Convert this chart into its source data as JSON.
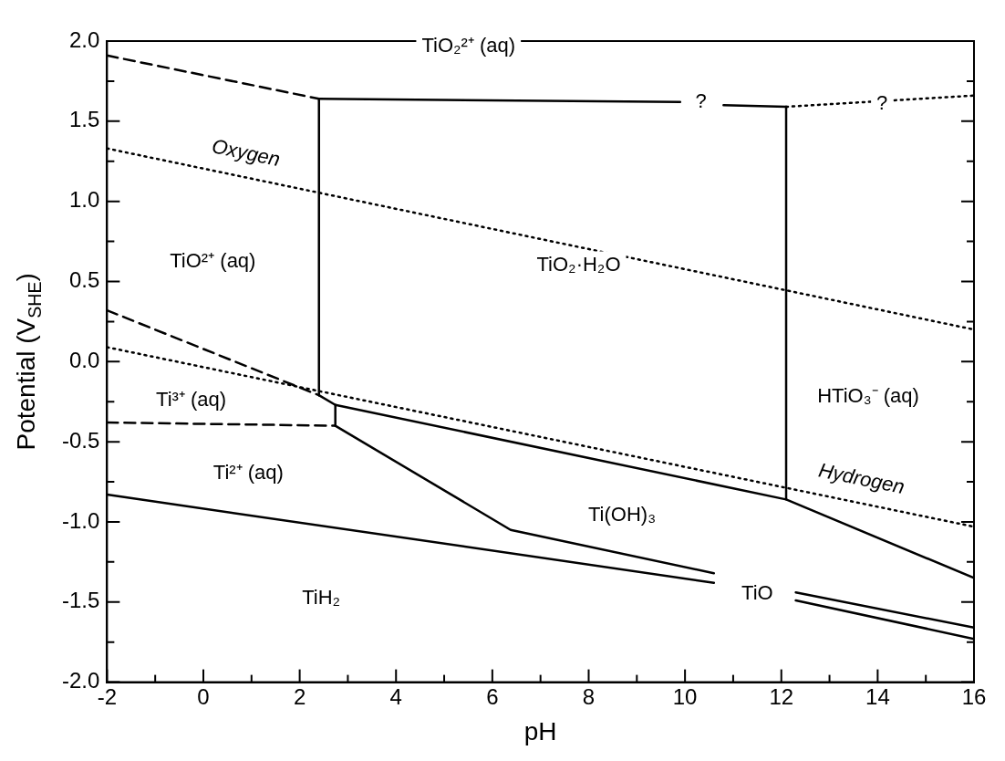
{
  "chart_data": {
    "type": "line",
    "xlabel": "pH",
    "ylabel": "Potential (V$_{SHE}$)",
    "xlim": [
      -2,
      16
    ],
    "ylim": [
      -2,
      2
    ],
    "xticks": [
      -2,
      {
        "value": -1,
        "label": null
      },
      0,
      {
        "value": 1,
        "label": null
      },
      2,
      {
        "value": 3,
        "label": null
      },
      4,
      {
        "value": 5,
        "label": null
      },
      6,
      {
        "value": 7,
        "label": null
      },
      8,
      {
        "value": 9,
        "label": null
      },
      10,
      {
        "value": 11,
        "label": null
      },
      12,
      {
        "value": 13,
        "label": null
      },
      14,
      {
        "value": 15,
        "label": null
      },
      16
    ],
    "yticks": [
      {
        "value": -2,
        "label": "-2.0"
      },
      {
        "value": -1.75,
        "label": null
      },
      {
        "value": -1.5,
        "label": "-1.5"
      },
      {
        "value": -1.25,
        "label": null
      },
      {
        "value": -1,
        "label": "-1.0"
      },
      {
        "value": -0.75,
        "label": null
      },
      {
        "value": -0.5,
        "label": "-0.5"
      },
      {
        "value": -0.25,
        "label": null
      },
      {
        "value": 0,
        "label": "0.0"
      },
      {
        "value": 0.25,
        "label": null
      },
      {
        "value": 0.5,
        "label": "0.5"
      },
      {
        "value": 0.75,
        "label": null
      },
      {
        "value": 1,
        "label": "1.0"
      },
      {
        "value": 1.25,
        "label": null
      },
      {
        "value": 1.5,
        "label": "1.5"
      },
      {
        "value": 1.75,
        "label": null
      },
      {
        "value": 2,
        "label": "2.0"
      }
    ],
    "grid": false,
    "legend": false,
    "marker": "none",
    "series": [
      {
        "color": "#000000",
        "line_style": "dashed",
        "x": [
          -2,
          2.4
        ],
        "values": [
          1.91,
          1.64
        ]
      },
      {
        "color": "#000000",
        "line_style": "solid",
        "x": [
          2.4,
          9.9
        ],
        "values": [
          1.64,
          1.62
        ]
      },
      {
        "color": "#000000",
        "line_style": "solid",
        "x": [
          10.8,
          12.1
        ],
        "values": [
          1.6,
          1.59
        ]
      },
      {
        "color": "#000000",
        "line_style": "dotted",
        "x": [
          12.1,
          16
        ],
        "values": [
          1.59,
          1.66
        ]
      },
      {
        "color": "#000000",
        "line_style": "solid",
        "x": [
          2.4,
          2.4
        ],
        "values": [
          1.64,
          -0.21
        ]
      },
      {
        "color": "#000000",
        "line_style": "solid",
        "x": [
          12.1,
          12.1
        ],
        "values": [
          1.59,
          -0.86
        ]
      },
      {
        "name": "Oxygen",
        "color": "#000000",
        "line_style": "dotted",
        "x": [
          -2,
          16
        ],
        "values": [
          1.33,
          0.2
        ]
      },
      {
        "name": "Hydrogen",
        "color": "#000000",
        "line_style": "dotted",
        "x": [
          -2,
          16
        ],
        "values": [
          0.09,
          -1.03
        ]
      },
      {
        "color": "#000000",
        "line_style": "dashed",
        "x": [
          -2,
          2.4
        ],
        "values": [
          0.32,
          -0.21
        ]
      },
      {
        "color": "#000000",
        "line_style": "solid",
        "x": [
          2.4,
          2.74,
          12.1,
          16
        ],
        "values": [
          -0.21,
          -0.27,
          -0.86,
          -1.35
        ]
      },
      {
        "color": "#000000",
        "line_style": "solid",
        "x": [
          2.74,
          2.74
        ],
        "values": [
          -0.27,
          -0.4
        ]
      },
      {
        "color": "#000000",
        "line_style": "dashed",
        "x": [
          -2,
          2.74
        ],
        "values": [
          -0.38,
          -0.4
        ]
      },
      {
        "color": "#000000",
        "line_style": "solid",
        "x": [
          2.74,
          6.38,
          10.6
        ],
        "values": [
          -0.4,
          -1.05,
          -1.32
        ]
      },
      {
        "color": "#000000",
        "line_style": "solid",
        "x": [
          -2,
          10.6
        ],
        "values": [
          -0.83,
          -1.38
        ]
      },
      {
        "color": "#000000",
        "line_style": "solid",
        "x": [
          12.3,
          16
        ],
        "values": [
          -1.44,
          -1.66
        ]
      },
      {
        "color": "#000000",
        "line_style": "solid",
        "x": [
          12.3,
          16
        ],
        "values": [
          -1.49,
          -1.73
        ]
      }
    ],
    "annotations": [
      "TiO₂²⁺ (aq)",
      "?",
      "?",
      "TiO²⁺ (aq)",
      "TiO₂·H₂O",
      "Ti³⁺ (aq)",
      "HTiO₃⁻ (aq)",
      "Ti²⁺ (aq)",
      "Ti(OH)₃",
      "TiO",
      "TiH₂"
    ]
  }
}
